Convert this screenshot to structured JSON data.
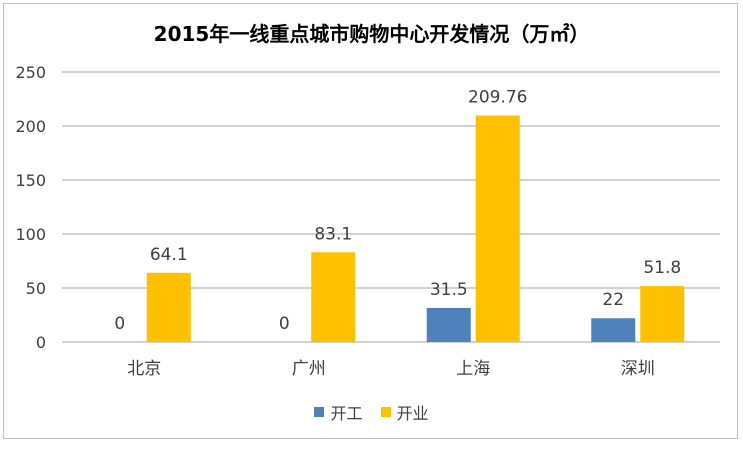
{
  "chart_data": {
    "type": "bar",
    "title": "2015年一线重点城市购物中心开发情况（万㎡）",
    "categories": [
      "北京",
      "广州",
      "上海",
      "深圳"
    ],
    "series": [
      {
        "name": "开工",
        "values": [
          0,
          0,
          31.5,
          22
        ],
        "labels": [
          "0",
          "0",
          "31.5",
          "22"
        ],
        "color": "#4f81bd"
      },
      {
        "name": "开业",
        "values": [
          64.1,
          83.1,
          209.76,
          51.8
        ],
        "labels": [
          "64.1",
          "83.1",
          "209.76",
          "51.8"
        ],
        "color": "#ffc000"
      }
    ],
    "ylim": [
      0,
      250
    ],
    "yticks": [
      "0",
      "50",
      "100",
      "150",
      "200",
      "250"
    ],
    "grid": true,
    "legend": "bottom"
  }
}
